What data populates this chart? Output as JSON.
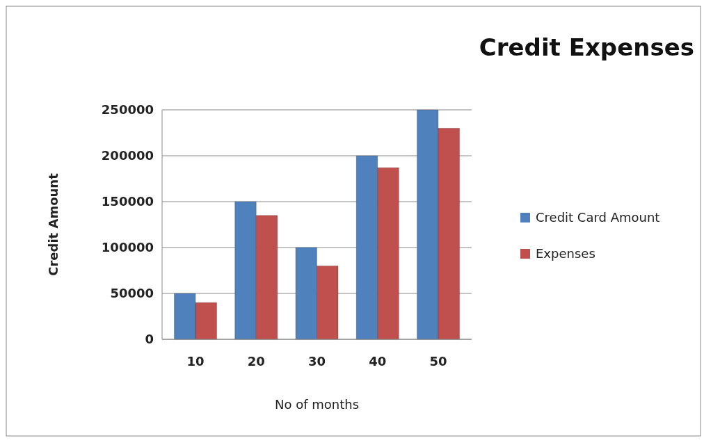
{
  "chart_data": {
    "type": "bar",
    "title": "Credit Expenses",
    "xlabel": "No of months",
    "ylabel": "Credit Amount",
    "categories": [
      "10",
      "20",
      "30",
      "40",
      "50"
    ],
    "series": [
      {
        "name": "Credit Card Amount",
        "color": "#4f81bd",
        "values": [
          50000,
          150000,
          100000,
          200000,
          250000
        ]
      },
      {
        "name": "Expenses",
        "color": "#c0504d",
        "values": [
          40000,
          135000,
          80000,
          187000,
          230000
        ]
      }
    ],
    "ylim": [
      0,
      250000
    ],
    "yticks": [
      0,
      50000,
      100000,
      150000,
      200000,
      250000
    ],
    "grid": "y",
    "legend": "right"
  }
}
